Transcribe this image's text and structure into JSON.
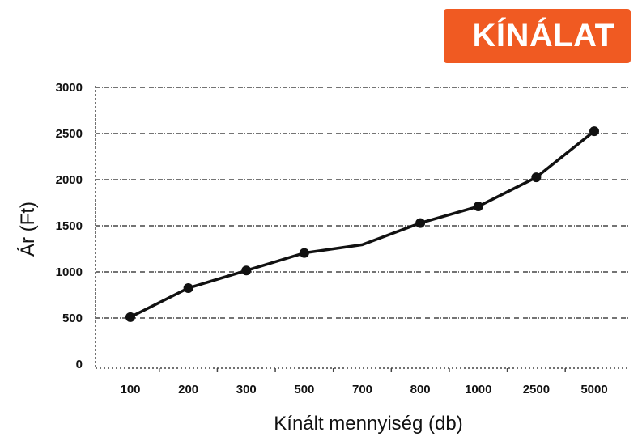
{
  "badge": {
    "label": "KÍNÁLAT",
    "color": "#f05a22"
  },
  "chart_data": {
    "type": "line",
    "title": "",
    "xlabel": "Kínált mennyiség (db)",
    "ylabel": "Ár (Ft)",
    "categories": [
      "100",
      "200",
      "300",
      "500",
      "700",
      "800",
      "1000",
      "2500",
      "5000"
    ],
    "series": [
      {
        "values": [
          510,
          825,
          1015,
          1205,
          1295,
          1530,
          1710,
          2025,
          2525
        ],
        "markers": [
          true,
          true,
          true,
          true,
          false,
          true,
          true,
          true,
          true
        ],
        "color": "#111111"
      }
    ],
    "ylim": [
      0,
      3000
    ],
    "yticks": [
      0,
      500,
      1000,
      1500,
      2000,
      2500,
      3000
    ],
    "grid": true,
    "grid_style": "dash-dot"
  }
}
